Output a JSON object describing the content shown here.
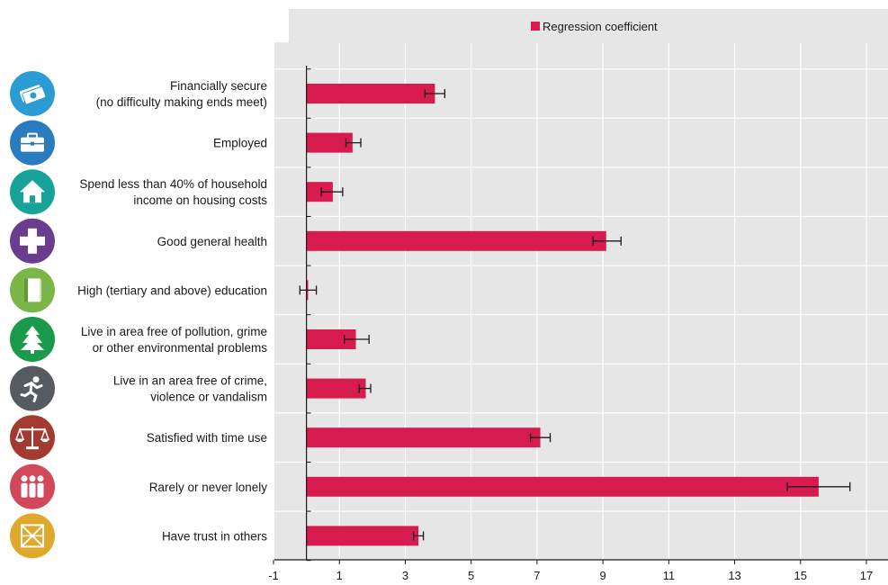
{
  "chart_data": {
    "type": "bar",
    "orientation": "horizontal",
    "legend_position": "top",
    "grid": true,
    "xlim": [
      -1,
      18
    ],
    "x_ticks": [
      -1,
      1,
      3,
      5,
      7,
      9,
      11,
      13,
      15,
      17
    ],
    "categories": [
      [
        "Financially secure",
        "(no difficulty making ends meet)"
      ],
      [
        "Employed"
      ],
      [
        "Spend less than 40% of household",
        "income on housing costs"
      ],
      [
        "Good general health"
      ],
      [
        "High (tertiary and above) education"
      ],
      [
        "Live in area free of pollution, grime",
        "or other environmental problems"
      ],
      [
        "Live in an area free of crime,",
        "violence or vandalism"
      ],
      [
        "Satisfied with time use"
      ],
      [
        "Rarely or never lonely"
      ],
      [
        "Have trust in others"
      ]
    ],
    "icons": [
      "money-icon",
      "briefcase-icon",
      "house-icon",
      "health-cross-icon",
      "book-icon",
      "tree-icon",
      "runner-icon",
      "scales-icon",
      "people-icon",
      "trust-icon"
    ],
    "icon_colors": [
      "#2b9bd3",
      "#2b7bbf",
      "#18a39a",
      "#6a3d8f",
      "#7ab648",
      "#1a9a4a",
      "#555b60",
      "#a33b30",
      "#d2485a",
      "#e0a92b"
    ],
    "series": [
      {
        "name": "Regression coefficient",
        "color": "#d81b4f",
        "values": [
          3.9,
          1.4,
          0.8,
          9.1,
          0.05,
          1.5,
          1.8,
          7.1,
          15.55,
          3.4
        ],
        "ci_low": [
          3.6,
          1.2,
          0.45,
          8.7,
          -0.2,
          1.15,
          1.6,
          6.8,
          14.6,
          3.25
        ],
        "ci_high": [
          4.2,
          1.65,
          1.1,
          9.55,
          0.3,
          1.9,
          1.95,
          7.4,
          16.5,
          3.55
        ]
      }
    ]
  }
}
